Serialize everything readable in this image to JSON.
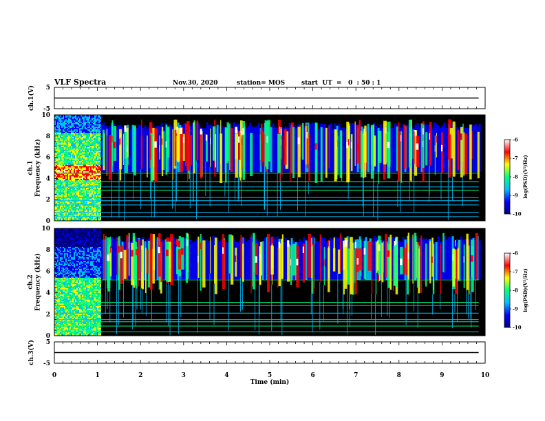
{
  "header": {
    "title": "VLF Spectra",
    "date": "Nov.30, 2020",
    "station": "station= MOS",
    "start": "start  UT  =   0  : 50 : 1"
  },
  "chart_data": [
    {
      "type": "line",
      "name": "waveform-ch1",
      "ylabel": "ch.1(V)",
      "ylim": [
        -5,
        5
      ],
      "yticks": [
        "5",
        "-5"
      ],
      "xlim": [
        0,
        10
      ],
      "trace_level": 0
    },
    {
      "type": "heatmap",
      "name": "spectrogram-ch1",
      "ylabel": "ch.1\nFrequency (kHz)",
      "ylim": [
        0,
        10
      ],
      "yticks": [
        "0",
        "2",
        "4",
        "6",
        "8",
        "10"
      ],
      "xlim": [
        0,
        10
      ],
      "data_end_min": 9.85,
      "colorbar": {
        "label": "log(PSD)(V²/Hz)",
        "range": [
          -10,
          -6
        ],
        "ticks": [
          "-6",
          "-7",
          "-8",
          "-9",
          "-10"
        ],
        "colors": [
          "#000080",
          "#0000ff",
          "#00c0ff",
          "#00ff80",
          "#ffff00",
          "#ff0000",
          "#ffffff"
        ]
      }
    },
    {
      "type": "heatmap",
      "name": "spectrogram-ch2",
      "ylabel": "ch.2\nFrequency (kHz)",
      "ylim": [
        0,
        10
      ],
      "yticks": [
        "0",
        "2",
        "4",
        "6",
        "8",
        "10"
      ],
      "xlim": [
        0,
        10
      ],
      "data_end_min": 9.85,
      "colorbar": {
        "label": "log(PSD)(V²/Hz)",
        "range": [
          -10,
          -6
        ],
        "ticks": [
          "-6",
          "-7",
          "-8",
          "-9",
          "-10"
        ],
        "colors": [
          "#000080",
          "#0000ff",
          "#00c0ff",
          "#00ff80",
          "#ffff00",
          "#ff0000",
          "#ffffff"
        ]
      }
    },
    {
      "type": "line",
      "name": "waveform-ch3",
      "ylabel": "ch.3(V)",
      "ylim": [
        -5,
        5
      ],
      "yticks": [
        "5",
        "-5"
      ],
      "xlim": [
        0,
        10
      ],
      "trace_level": 0
    }
  ],
  "xaxis": {
    "label": "Time  (min)",
    "ticks": [
      "0",
      "1",
      "2",
      "3",
      "4",
      "5",
      "6",
      "7",
      "8",
      "9",
      "10"
    ]
  }
}
